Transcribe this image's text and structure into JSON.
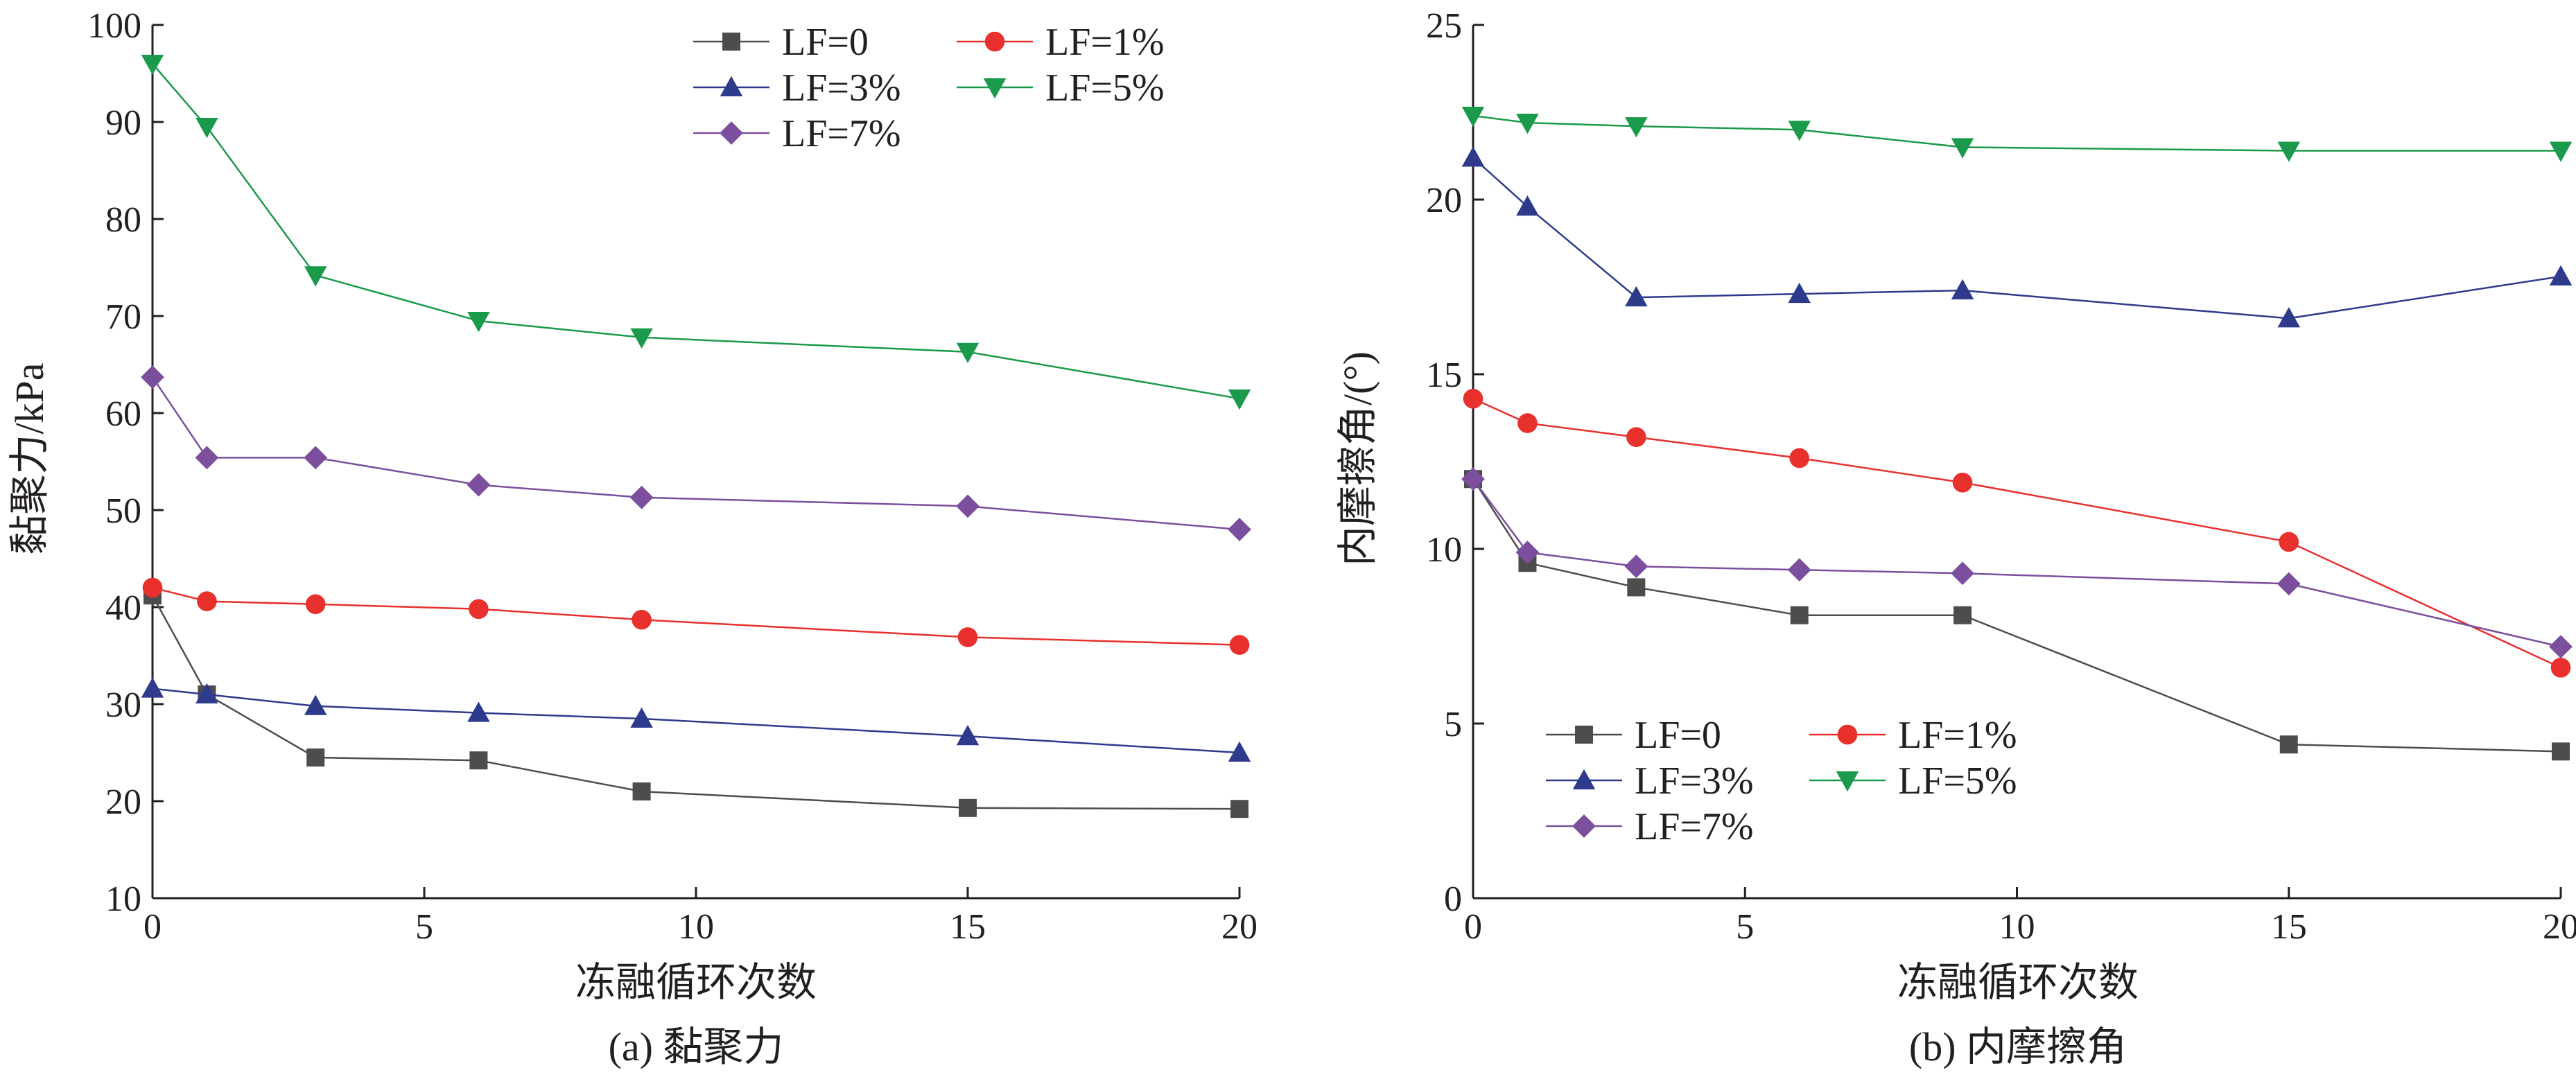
{
  "chart_data": [
    {
      "type": "line",
      "caption": "(a) 黏聚力",
      "xlabel": "冻融循环次数",
      "ylabel": "黏聚力/kPa",
      "xlim": [
        0,
        20
      ],
      "ylim": [
        10,
        100
      ],
      "xticks": [
        "0",
        "5",
        "10",
        "15",
        "20"
      ],
      "yticks": [
        "10",
        "20",
        "30",
        "40",
        "50",
        "60",
        "70",
        "80",
        "90",
        "100"
      ],
      "legend_position": "top-right",
      "x": [
        0,
        1,
        3,
        6,
        9,
        15,
        20
      ],
      "series": [
        {
          "name": "LF=0",
          "color": "#4d4d4d",
          "marker": "square",
          "values": [
            41.2,
            31.0,
            24.5,
            24.2,
            21.0,
            19.3,
            19.2
          ]
        },
        {
          "name": "LF=1%",
          "color": "#e8302c",
          "marker": "circle",
          "values": [
            42.0,
            40.6,
            40.3,
            39.8,
            38.7,
            36.9,
            36.1
          ]
        },
        {
          "name": "LF=3%",
          "color": "#2e3a8c",
          "marker": "triangle-up",
          "values": [
            31.6,
            31.0,
            29.8,
            29.1,
            28.5,
            26.7,
            25.0
          ]
        },
        {
          "name": "LF=5%",
          "color": "#1a9a4a",
          "marker": "triangle-down",
          "values": [
            96.0,
            89.5,
            74.2,
            69.5,
            67.8,
            66.3,
            61.5
          ]
        },
        {
          "name": "LF=7%",
          "color": "#7b4f9d",
          "marker": "diamond",
          "values": [
            63.7,
            55.4,
            55.4,
            52.6,
            51.3,
            50.4,
            48.0
          ]
        }
      ]
    },
    {
      "type": "line",
      "caption": "(b) 内摩擦角",
      "xlabel": "冻融循环次数",
      "ylabel": "内摩擦角/(°)",
      "xlim": [
        0,
        20
      ],
      "ylim": [
        0,
        25
      ],
      "xticks": [
        "0",
        "5",
        "10",
        "15",
        "20"
      ],
      "yticks": [
        "0",
        "5",
        "10",
        "15",
        "20",
        "25"
      ],
      "legend_position": "bottom-left",
      "x": [
        0,
        1,
        3,
        6,
        9,
        15,
        20
      ],
      "series": [
        {
          "name": "LF=0",
          "color": "#4d4d4d",
          "marker": "square",
          "values": [
            12.0,
            9.6,
            8.9,
            8.1,
            8.1,
            4.4,
            4.2
          ]
        },
        {
          "name": "LF=1%",
          "color": "#e8302c",
          "marker": "circle",
          "values": [
            14.3,
            13.6,
            13.2,
            12.6,
            11.9,
            10.2,
            6.6
          ]
        },
        {
          "name": "LF=3%",
          "color": "#2e3a8c",
          "marker": "triangle-up",
          "values": [
            21.2,
            19.8,
            17.2,
            17.3,
            17.4,
            16.6,
            17.8
          ]
        },
        {
          "name": "LF=5%",
          "color": "#1a9a4a",
          "marker": "triangle-down",
          "values": [
            22.4,
            22.2,
            22.1,
            22.0,
            21.5,
            21.4,
            21.4
          ]
        },
        {
          "name": "LF=7%",
          "color": "#7b4f9d",
          "marker": "diamond",
          "values": [
            12.0,
            9.9,
            9.5,
            9.4,
            9.3,
            9.0,
            7.2
          ]
        }
      ]
    }
  ]
}
